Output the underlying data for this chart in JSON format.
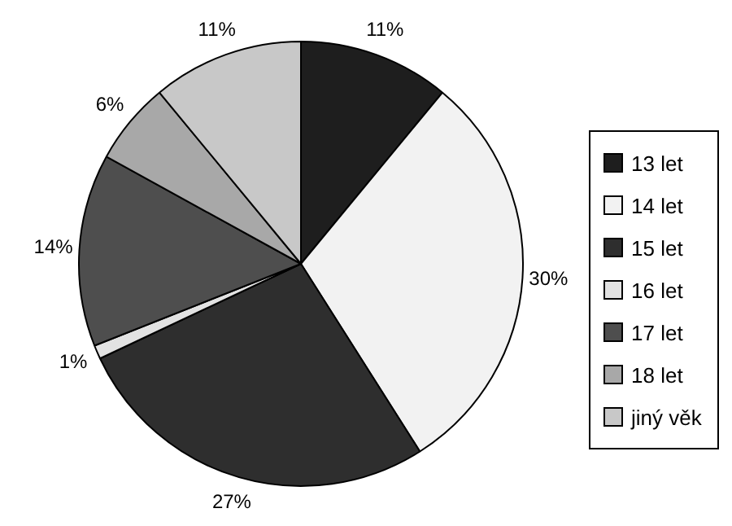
{
  "chart_data": {
    "type": "pie",
    "categories": [
      "13 let",
      "14 let",
      "15 let",
      "16 let",
      "17 let",
      "18 let",
      "jiný věk"
    ],
    "values": [
      11,
      30,
      27,
      1,
      14,
      6,
      11
    ],
    "colors": [
      "#1e1e1e",
      "#f2f2f2",
      "#2e2e2e",
      "#e2e2e2",
      "#4e4e4e",
      "#a8a8a8",
      "#c8c8c8"
    ],
    "value_labels": [
      "11%",
      "30%",
      "27%",
      "1%",
      "14%",
      "6%",
      "11%"
    ],
    "legend": "right"
  }
}
